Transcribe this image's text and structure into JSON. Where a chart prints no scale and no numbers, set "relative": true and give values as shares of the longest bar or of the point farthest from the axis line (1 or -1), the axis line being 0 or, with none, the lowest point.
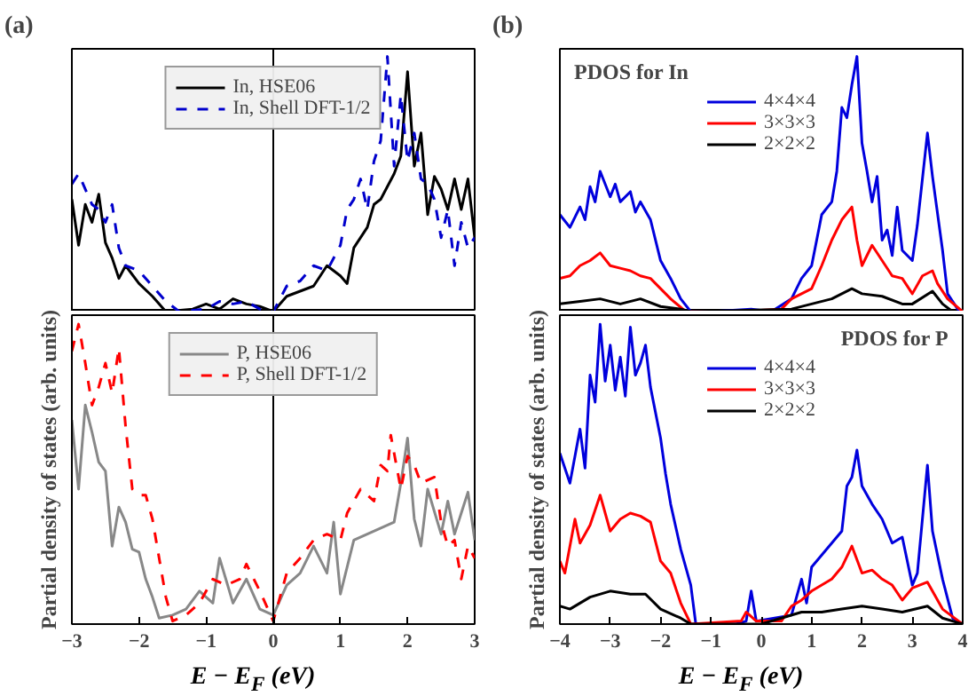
{
  "chart_data": [
    {
      "type": "line",
      "title": "(a)",
      "relative": true,
      "xlim": [
        -3,
        3
      ],
      "xticks": [
        -3,
        -2,
        -1,
        0,
        1,
        2,
        3
      ],
      "tick_labels": false,
      "grid": false,
      "legend": "top",
      "ref_lines": [
        {
          "axis": "x",
          "value": 0,
          "color": "#000000"
        }
      ],
      "series": [
        {
          "name": "In, HSE06",
          "color": "#000000",
          "line_style": "solid",
          "x": [
            -3,
            -2.9,
            -2.8,
            -2.7,
            -2.6,
            -2.5,
            -2.4,
            -2.3,
            -2.2,
            -2.0,
            -1.8,
            -1.6,
            -1.2,
            -1.0,
            -0.8,
            -0.6,
            -0.4,
            -0.2,
            0,
            0.2,
            0.4,
            0.6,
            0.8,
            1.0,
            1.1,
            1.2,
            1.4,
            1.5,
            1.6,
            1.8,
            1.9,
            2.0,
            2.1,
            2.2,
            2.3,
            2.4,
            2.5,
            2.6,
            2.7,
            2.8,
            2.9,
            3.0
          ],
          "values": [
            0.44,
            0.26,
            0.42,
            0.35,
            0.46,
            0.27,
            0.21,
            0.13,
            0.18,
            0.11,
            0.06,
            0,
            0.01,
            0.03,
            0.01,
            0.05,
            0.03,
            0.02,
            0,
            0.06,
            0.08,
            0.1,
            0.18,
            0.14,
            0.11,
            0.25,
            0.33,
            0.42,
            0.44,
            0.54,
            0.61,
            0.94,
            0.57,
            0.7,
            0.38,
            0.53,
            0.48,
            0.4,
            0.52,
            0.4,
            0.52,
            0.29
          ]
        },
        {
          "name": "In, Shell DFT-1/2",
          "color": "#0000cc",
          "line_style": "dashed",
          "x": [
            -3,
            -2.9,
            -2.8,
            -2.7,
            -2.6,
            -2.5,
            -2.4,
            -2.3,
            -2.2,
            -2.0,
            -1.8,
            -1.6,
            -1.4,
            -1.0,
            -0.8,
            -0.6,
            -0.4,
            -0.2,
            0,
            0.2,
            0.4,
            0.6,
            0.8,
            1.0,
            1.1,
            1.2,
            1.3,
            1.4,
            1.5,
            1.6,
            1.7,
            1.8,
            1.9,
            2.0,
            2.1,
            2.2,
            2.3,
            2.4,
            2.5,
            2.6,
            2.7,
            2.8,
            2.9,
            3.0
          ],
          "values": [
            0.5,
            0.54,
            0.48,
            0.42,
            0.4,
            0.35,
            0.42,
            0.25,
            0.18,
            0.16,
            0.1,
            0.04,
            0,
            0.01,
            0.04,
            0.03,
            0.04,
            0.01,
            0,
            0.1,
            0.12,
            0.18,
            0.16,
            0.26,
            0.4,
            0.44,
            0.52,
            0.4,
            0.59,
            0.67,
            1.0,
            0.57,
            0.85,
            0.59,
            0.7,
            0.52,
            0.5,
            0.44,
            0.29,
            0.4,
            0.18,
            0.35,
            0.25,
            0.29
          ]
        }
      ]
    },
    {
      "type": "line",
      "relative": true,
      "xlabel": "E − E$_{F}$ (eV)",
      "ylabel": "Partial density of states (arb. units)",
      "xlim": [
        -3,
        3
      ],
      "xticks": [
        -3,
        -2,
        -1,
        0,
        1,
        2,
        3
      ],
      "tick_labels": "x",
      "grid": false,
      "legend": "top",
      "ref_lines": [
        {
          "axis": "x",
          "value": 0,
          "color": "#000000"
        }
      ],
      "series": [
        {
          "name": "P, HSE06",
          "color": "#888888",
          "line_style": "solid",
          "x": [
            -3,
            -2.9,
            -2.8,
            -2.7,
            -2.6,
            -2.5,
            -2.4,
            -2.3,
            -2.2,
            -2.1,
            -2.0,
            -1.9,
            -1.8,
            -1.7,
            -1.5,
            -1.3,
            -1.1,
            -0.9,
            -0.8,
            -0.6,
            -0.4,
            -0.2,
            0,
            0.2,
            0.4,
            0.6,
            0.8,
            0.9,
            1.0,
            1.2,
            1.4,
            1.6,
            1.8,
            1.9,
            2.0,
            2.1,
            2.2,
            2.3,
            2.5,
            2.6,
            2.7,
            2.8,
            2.9,
            3.0
          ],
          "values": [
            0.68,
            0.45,
            0.73,
            0.64,
            0.54,
            0.51,
            0.26,
            0.39,
            0.34,
            0.25,
            0.24,
            0.15,
            0.09,
            0.02,
            0.03,
            0.05,
            0.11,
            0.07,
            0.22,
            0.07,
            0.15,
            0.05,
            0.03,
            0.13,
            0.17,
            0.26,
            0.17,
            0.34,
            0.1,
            0.28,
            0.3,
            0.32,
            0.34,
            0.47,
            0.62,
            0.35,
            0.26,
            0.45,
            0.3,
            0.41,
            0.3,
            0.37,
            0.44,
            0.28
          ]
        },
        {
          "name": "P, Shell DFT-1/2",
          "color": "#ff0000",
          "line_style": "dashed",
          "x": [
            -3,
            -2.9,
            -2.8,
            -2.7,
            -2.6,
            -2.5,
            -2.4,
            -2.3,
            -2.2,
            -2.1,
            -2.0,
            -1.9,
            -1.8,
            -1.7,
            -1.6,
            -1.5,
            -1.3,
            -1.1,
            -0.9,
            -0.7,
            -0.5,
            -0.4,
            -0.2,
            0,
            0.2,
            0.4,
            0.6,
            0.8,
            1.0,
            1.1,
            1.3,
            1.5,
            1.6,
            1.7,
            1.75,
            1.9,
            2.0,
            2.1,
            2.2,
            2.4,
            2.5,
            2.6,
            2.7,
            2.8,
            2.9,
            3.0
          ],
          "values": [
            0.91,
            1.0,
            0.87,
            0.73,
            0.79,
            0.87,
            0.77,
            0.92,
            0.66,
            0.45,
            0.43,
            0.43,
            0.35,
            0.22,
            0.09,
            0.01,
            0.03,
            0.07,
            0.15,
            0.13,
            0.15,
            0.2,
            0.11,
            0.01,
            0.17,
            0.22,
            0.28,
            0.3,
            0.28,
            0.37,
            0.45,
            0.41,
            0.53,
            0.51,
            0.63,
            0.45,
            0.56,
            0.53,
            0.47,
            0.49,
            0.34,
            0.26,
            0.28,
            0.15,
            0.26,
            0.22
          ]
        }
      ]
    },
    {
      "type": "line",
      "title": "(b)",
      "relative": true,
      "xlim": [
        -4,
        4
      ],
      "xticks": [
        -4,
        -3,
        -2,
        -1,
        0,
        1,
        2,
        3,
        4
      ],
      "tick_labels": false,
      "grid": false,
      "legend": "top",
      "annotations": [
        "PDOS for In"
      ],
      "series": [
        {
          "name": "4×4×4",
          "color": "#0000dd",
          "line_style": "solid",
          "x": [
            -4,
            -3.8,
            -3.6,
            -3.5,
            -3.4,
            -3.3,
            -3.2,
            -3.0,
            -2.9,
            -2.8,
            -2.6,
            -2.5,
            -2.4,
            -2.2,
            -2.0,
            -1.8,
            -1.6,
            -1.4,
            -1.0,
            -0.2,
            0.2,
            0.6,
            0.8,
            1.0,
            1.2,
            1.4,
            1.5,
            1.6,
            1.7,
            1.8,
            1.9,
            2.0,
            2.1,
            2.2,
            2.3,
            2.4,
            2.5,
            2.6,
            2.7,
            2.8,
            3.0,
            3.1,
            3.3,
            3.4,
            3.6,
            3.7,
            3.9,
            4.0
          ],
          "values": [
            0.38,
            0.33,
            0.41,
            0.36,
            0.49,
            0.43,
            0.55,
            0.45,
            0.5,
            0.43,
            0.47,
            0.39,
            0.43,
            0.36,
            0.2,
            0.13,
            0.05,
            0,
            null,
            0.01,
            0,
            0.05,
            0.13,
            0.18,
            0.38,
            0.43,
            0.55,
            0.8,
            0.76,
            0.89,
            1.0,
            0.66,
            0.55,
            0.43,
            0.53,
            0.28,
            0.32,
            0.22,
            0.41,
            0.24,
            0.2,
            0.34,
            0.7,
            0.53,
            0.24,
            0.07,
            0.01,
            0
          ]
        },
        {
          "name": "3×3×3",
          "color": "#ff0000",
          "line_style": "solid",
          "x": [
            -4,
            -3.8,
            -3.6,
            -3.4,
            -3.2,
            -3.0,
            -2.8,
            -2.6,
            -2.4,
            -2.2,
            -2.0,
            -1.8,
            -1.5,
            -0.5,
            0.4,
            0.6,
            0.8,
            1.0,
            1.2,
            1.4,
            1.6,
            1.8,
            1.9,
            2.0,
            2.2,
            2.4,
            2.6,
            2.8,
            3.0,
            3.2,
            3.4,
            3.5,
            3.7,
            4.0
          ],
          "values": [
            0.13,
            0.14,
            0.18,
            0.2,
            0.23,
            0.18,
            0.17,
            0.16,
            0.14,
            0.13,
            0.09,
            0.05,
            0,
            null,
            0.01,
            0.05,
            0.07,
            0.09,
            0.18,
            0.28,
            0.36,
            0.41,
            0.28,
            0.18,
            0.26,
            0.2,
            0.14,
            0.13,
            0.07,
            0.14,
            0.16,
            0.11,
            0.05,
            0
          ]
        },
        {
          "name": "2×2×2",
          "color": "#000000",
          "line_style": "solid",
          "x": [
            -4,
            -3.6,
            -3.2,
            -2.8,
            -2.4,
            -2.0,
            -1.6,
            -1.4,
            0.6,
            1.0,
            1.4,
            1.8,
            2.0,
            2.4,
            2.8,
            3.0,
            3.4,
            3.6,
            3.8
          ],
          "values": [
            0.03,
            0.04,
            0.05,
            0.03,
            0.05,
            0.02,
            0.01,
            0,
            0.01,
            0.03,
            0.05,
            0.09,
            0.07,
            0.06,
            0.03,
            0.03,
            0.08,
            0.03,
            0
          ]
        }
      ]
    },
    {
      "type": "line",
      "relative": true,
      "xlabel": "E − E$_{F}$ (eV)",
      "ylabel": "Partial density of states (arb. units)",
      "xlim": [
        -4,
        4
      ],
      "xticks": [
        -4,
        -3,
        -2,
        -1,
        0,
        1,
        2,
        3,
        4
      ],
      "tick_labels": "x",
      "grid": false,
      "legend": "top",
      "annotations": [
        "PDOS for P"
      ],
      "series": [
        {
          "name": "4×4×4",
          "color": "#0000dd",
          "line_style": "solid",
          "x": [
            -4,
            -3.8,
            -3.6,
            -3.5,
            -3.4,
            -3.3,
            -3.2,
            -3.1,
            -3.0,
            -2.9,
            -2.8,
            -2.7,
            -2.6,
            -2.5,
            -2.4,
            -2.3,
            -2.2,
            -2.0,
            -1.9,
            -1.8,
            -1.6,
            -1.4,
            -1.3,
            -0.5,
            -0.3,
            -0.2,
            -0.1,
            0.6,
            0.8,
            0.9,
            1.0,
            1.2,
            1.4,
            1.6,
            1.7,
            1.8,
            1.9,
            2.0,
            2.2,
            2.4,
            2.6,
            2.8,
            3.0,
            3.1,
            3.3,
            3.4,
            3.6,
            3.8,
            4.0
          ],
          "values": [
            0.57,
            0.47,
            0.65,
            0.52,
            0.83,
            0.74,
            1.0,
            0.81,
            0.93,
            0.78,
            0.89,
            0.76,
            0.99,
            0.83,
            0.87,
            0.93,
            0.79,
            0.62,
            0.5,
            0.4,
            0.25,
            0.13,
            0,
            0,
            0.01,
            0.11,
            0.01,
            0.03,
            0.15,
            0.07,
            0.19,
            0.23,
            0.27,
            0.31,
            0.46,
            0.49,
            0.58,
            0.46,
            0.4,
            0.35,
            0.27,
            0.29,
            0.13,
            0.17,
            0.53,
            0.31,
            0.15,
            0.02,
            0
          ]
        },
        {
          "name": "3×3×3",
          "color": "#ff0000",
          "line_style": "solid",
          "x": [
            -4,
            -3.9,
            -3.7,
            -3.6,
            -3.4,
            -3.2,
            -3.0,
            -2.8,
            -2.6,
            -2.4,
            -2.2,
            -2.0,
            -1.8,
            -1.6,
            -1.4,
            -0.4,
            -0.3,
            -0.1,
            0.4,
            0.6,
            0.8,
            1.0,
            1.2,
            1.4,
            1.6,
            1.8,
            2.0,
            2.2,
            2.4,
            2.6,
            2.8,
            3.0,
            3.3,
            3.6,
            4.0
          ],
          "values": [
            0.21,
            0.17,
            0.35,
            0.27,
            0.33,
            0.43,
            0.31,
            0.35,
            0.37,
            0.36,
            0.34,
            0.21,
            0.17,
            0.07,
            0,
            0.01,
            0.04,
            0.01,
            0.01,
            0.06,
            0.08,
            0.11,
            0.13,
            0.15,
            0.19,
            0.26,
            0.17,
            0.18,
            0.15,
            0.13,
            0.08,
            0.12,
            0.14,
            0.05,
            0
          ]
        },
        {
          "name": "2×2×2",
          "color": "#000000",
          "line_style": "solid",
          "x": [
            -4,
            -3.8,
            -3.6,
            -3.4,
            -3.0,
            -2.6,
            -2.3,
            -2.0,
            -1.6,
            -1.4,
            0,
            0.4,
            0.8,
            1.2,
            1.6,
            2.0,
            2.4,
            2.8,
            3.3,
            3.6,
            4.0
          ],
          "values": [
            0.06,
            0.05,
            0.07,
            0.09,
            0.11,
            0.1,
            0.1,
            0.05,
            0.02,
            0,
            0,
            0.02,
            0.04,
            0.04,
            0.05,
            0.06,
            0.05,
            0.04,
            0.06,
            0.02,
            0
          ]
        }
      ]
    }
  ]
}
